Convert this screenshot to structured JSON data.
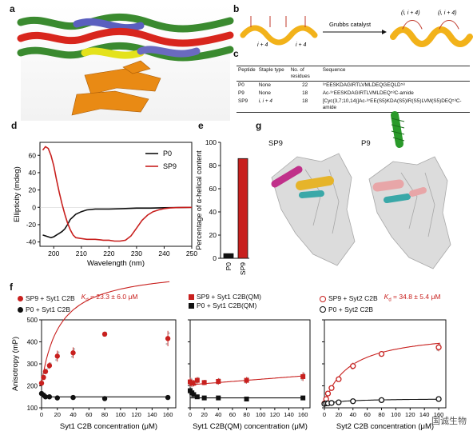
{
  "panels": {
    "a": "a",
    "b": "b",
    "c": "c",
    "d": "d",
    "e": "e",
    "f": "f",
    "g": "g"
  },
  "colors": {
    "red": "#c8201e",
    "black": "#111111",
    "grey": "#b0b0b0",
    "helix": "#f2b21a",
    "staple": "#c0392b"
  },
  "panel_b": {
    "catalyst_label": "Grubbs catalyst",
    "spacing_label_left": "i + 4",
    "spacing_label_right": "i + 4",
    "product_label_1": "(i, i + 4)",
    "product_label_2": "(i, i + 4)"
  },
  "table_c": {
    "headers": [
      "Peptide",
      "Staple type",
      "No. of residues",
      "Sequence"
    ],
    "rows": [
      {
        "peptide": "P0",
        "staple": "None",
        "residues": "22",
        "sequence": "³⁷EESKDAGIRTLVMLDEQGEQLD⁵⁸"
      },
      {
        "peptide": "P9",
        "staple": "None",
        "residues": "18",
        "sequence": "Ac-³⁷EESKDAGIRTLVMLDEQ⁵³C-amide"
      },
      {
        "peptide": "SP9",
        "staple": "i, i + 4",
        "residues": "18",
        "sequence": "[Cyc(3,7;10,14)]Ac-³⁷EE(S5)KDA(S5)IR(S5)LVM(S5)DEQ⁵³C-amide"
      }
    ]
  },
  "panel_g": {
    "label_left": "SP9",
    "label_right": "P9"
  },
  "watermark": "国诚生物",
  "legends_f": {
    "f1": {
      "s1": "SP9 + Syt1 C2B",
      "kd_prefix": "K",
      "kd_sub": "d",
      "kd_value": " = 23.3 ± 6.0 μM",
      "s2": "P0 + Syt1 C2B"
    },
    "f2": {
      "s1": "SP9 + Syt1 C2B(QM)",
      "s2": "P0 + Syt1 C2B(QM)"
    },
    "f3": {
      "s1": "SP9 + Syt2 C2B",
      "kd_prefix": "K",
      "kd_sub": "d",
      "kd_value": " = 34.8 ± 5.4 μM",
      "s2": "P0 + Syt2 C2B"
    }
  },
  "chart_data": [
    {
      "id": "d",
      "type": "line",
      "xlabel": "Wavelength (nm)",
      "ylabel": "Ellipticity (mdeg)",
      "xlim": [
        195,
        250
      ],
      "ylim": [
        -45,
        75
      ],
      "xticks": [
        200,
        210,
        220,
        230,
        240,
        250
      ],
      "yticks": [
        -40,
        -20,
        0,
        20,
        40,
        60
      ],
      "legend": "top-right",
      "series": [
        {
          "name": "P0",
          "color": "#111111",
          "x": [
            196,
            197,
            198,
            199,
            200,
            201,
            202,
            203,
            204,
            205,
            206,
            208,
            210,
            212,
            215,
            220,
            225,
            230,
            235,
            240,
            245,
            250
          ],
          "y": [
            -32,
            -33,
            -34,
            -35,
            -34,
            -32,
            -30,
            -28,
            -25,
            -20,
            -14,
            -8,
            -5,
            -3,
            -2,
            -2,
            -1.5,
            -1,
            -1,
            -0.5,
            -0.3,
            0
          ]
        },
        {
          "name": "SP9",
          "color": "#c8201e",
          "x": [
            196,
            197,
            198,
            199,
            200,
            201,
            202,
            203,
            204,
            205,
            206,
            207,
            208,
            210,
            212,
            215,
            218,
            220,
            222,
            224,
            226,
            228,
            230,
            232,
            234,
            236,
            238,
            240,
            242,
            245,
            250
          ],
          "y": [
            66,
            70,
            68,
            60,
            48,
            32,
            17,
            4,
            -8,
            -18,
            -26,
            -32,
            -35,
            -36,
            -37,
            -37,
            -38,
            -38,
            -39,
            -39,
            -38,
            -33,
            -24,
            -15,
            -9,
            -5,
            -3,
            -1.5,
            -0.8,
            -0.3,
            0
          ]
        }
      ]
    },
    {
      "id": "e",
      "type": "bar",
      "ylabel": "Percentage of α-helical content",
      "ylim": [
        0,
        100
      ],
      "yticks": [
        0,
        20,
        40,
        60,
        80,
        100
      ],
      "categories": [
        "P0",
        "SP9"
      ],
      "values": [
        4,
        86
      ],
      "bar_colors": [
        "#111111",
        "#c8201e"
      ]
    },
    {
      "id": "f1",
      "type": "scatter",
      "xlabel": "Syt1 C2B concentration (μM)",
      "ylabel": "Anisotropy (mP)",
      "xlim": [
        0,
        170
      ],
      "ylim": [
        100,
        500
      ],
      "xticks": [
        0,
        20,
        40,
        60,
        80,
        100,
        120,
        140,
        160
      ],
      "yticks": [
        100,
        200,
        300,
        400,
        500
      ],
      "series": [
        {
          "name": "SP9 + Syt1 C2B",
          "color": "#c8201e",
          "marker": "dot",
          "fit": "hyperbolic",
          "fit_params": {
            "y0": 210,
            "ymax": 530,
            "kd": 23.3
          },
          "x": [
            0,
            2.5,
            5,
            10,
            20,
            40,
            80,
            160
          ],
          "y": [
            212,
            238,
            265,
            292,
            335,
            350,
            435,
            415
          ],
          "err": [
            8,
            10,
            12,
            15,
            25,
            25,
            10,
            35
          ]
        },
        {
          "name": "P0 + Syt1 C2B",
          "color": "#111111",
          "marker": "dot",
          "fit": "flat",
          "fit_params": {
            "y": 150
          },
          "x": [
            0,
            2.5,
            5,
            10,
            20,
            40,
            80,
            160
          ],
          "y": [
            165,
            158,
            150,
            150,
            145,
            147,
            142,
            147
          ],
          "err": [
            8,
            8,
            6,
            6,
            6,
            6,
            5,
            8
          ]
        }
      ]
    },
    {
      "id": "f2",
      "type": "scatter",
      "xlabel": "Syt1 C2B(QM) concentration (μM)",
      "xlim": [
        0,
        170
      ],
      "ylim": [
        100,
        500
      ],
      "xticks": [
        0,
        20,
        40,
        60,
        80,
        100,
        120,
        140,
        160
      ],
      "yticks": [
        100,
        200,
        300,
        400,
        500
      ],
      "series": [
        {
          "name": "SP9 + Syt1 C2B(QM)",
          "color": "#c8201e",
          "marker": "square",
          "fit": "linear",
          "fit_params": {
            "y0": 205,
            "slope": 0.25
          },
          "x": [
            0,
            2.5,
            5,
            10,
            20,
            40,
            80,
            160
          ],
          "y": [
            218,
            210,
            212,
            225,
            215,
            220,
            225,
            242
          ],
          "err": [
            20,
            15,
            15,
            15,
            12,
            15,
            15,
            20
          ]
        },
        {
          "name": "P0 + Syt1 C2B(QM)",
          "color": "#111111",
          "marker": "square",
          "fit": "flat",
          "fit_params": {
            "y": 145
          },
          "x": [
            0,
            2.5,
            5,
            10,
            20,
            40,
            80,
            160
          ],
          "y": [
            178,
            168,
            160,
            150,
            145,
            145,
            140,
            145
          ],
          "err": [
            15,
            12,
            10,
            8,
            8,
            8,
            8,
            8
          ]
        }
      ]
    },
    {
      "id": "f3",
      "type": "scatter",
      "xlabel": "Syt2 C2B concentration (μM)",
      "xlim": [
        0,
        170
      ],
      "ylim": [
        100,
        500
      ],
      "xticks": [
        0,
        20,
        40,
        60,
        80,
        100,
        120,
        140,
        160
      ],
      "yticks": [
        100,
        200,
        300,
        400,
        500
      ],
      "series": [
        {
          "name": "SP9 + Syt2 C2B",
          "color": "#c8201e",
          "marker": "ring",
          "fit": "hyperbolic",
          "fit_params": {
            "y0": 118,
            "ymax": 335,
            "kd": 34.8
          },
          "x": [
            0,
            2.5,
            5,
            10,
            20,
            40,
            80,
            160
          ],
          "y": [
            120,
            140,
            165,
            190,
            230,
            290,
            345,
            375
          ],
          "err": [
            6,
            8,
            10,
            12,
            12,
            15,
            12,
            18
          ]
        },
        {
          "name": "P0 + Syt2 C2B",
          "color": "#111111",
          "marker": "ring",
          "fit": "hyperbolic",
          "fit_params": {
            "y0": 118,
            "ymax": 25,
            "kd": 30
          },
          "x": [
            0,
            2.5,
            5,
            10,
            20,
            40,
            80,
            160
          ],
          "y": [
            118,
            120,
            120,
            122,
            125,
            130,
            135,
            140
          ],
          "err": [
            4,
            4,
            4,
            4,
            4,
            5,
            5,
            5
          ]
        }
      ]
    }
  ]
}
